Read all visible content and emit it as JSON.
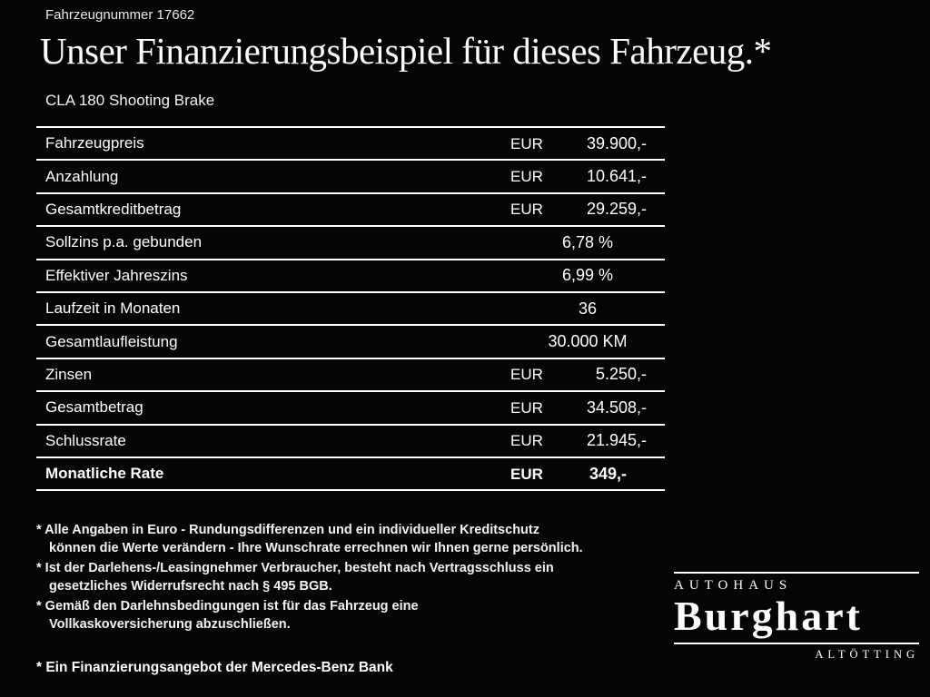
{
  "page": {
    "vehicle_number": "Fahrzeugnummer 17662",
    "title": "Unser Finanzierungsbeispiel für dieses Fahrzeug.*",
    "subtitle": "CLA 180 Shooting Brake"
  },
  "table": {
    "rows": [
      {
        "label": "Fahrzeugpreis",
        "currency": "EUR",
        "value": "39.900,-"
      },
      {
        "label": "Anzahlung",
        "currency": "EUR",
        "value": "10.641,-"
      },
      {
        "label": "Gesamtkreditbetrag",
        "currency": "EUR",
        "value": "29.259,-"
      },
      {
        "label": "Sollzins p.a. gebunden",
        "currency": "",
        "value": "6,78 %"
      },
      {
        "label": "Effektiver Jahreszins",
        "currency": "",
        "value": "6,99 %"
      },
      {
        "label": "Laufzeit in Monaten",
        "currency": "",
        "value": "36"
      },
      {
        "label": "Gesamtlaufleistung",
        "currency": "",
        "value": "30.000 KM"
      },
      {
        "label": "Zinsen",
        "currency": "EUR",
        "value": "5.250,-"
      },
      {
        "label": "Gesamtbetrag",
        "currency": "EUR",
        "value": "34.508,-"
      },
      {
        "label": "Schlussrate",
        "currency": "EUR",
        "value": "21.945,-"
      },
      {
        "label": "Monatliche Rate",
        "currency": "EUR",
        "value": "349,-",
        "bold": true
      }
    ]
  },
  "footnotes": [
    {
      "lines": [
        "* Alle Angaben in Euro - Rundungsdifferenzen und ein individueller Kreditschutz",
        "können die Werte verändern - Ihre Wunschrate errechnen wir Ihnen gerne persönlich."
      ]
    },
    {
      "lines": [
        "* Ist der Darlehens-/Leasingnehmer Verbraucher, besteht nach Vertragsschluss ein",
        "gesetzliches Widerrufsrecht nach § 495 BGB."
      ]
    },
    {
      "lines": [
        "* Gemäß den Darlehnsbedingungen ist für das Fahrzeug eine",
        "Vollkaskoversicherung abzuschließen."
      ]
    }
  ],
  "bank_note": "* Ein Finanzierungsangebot der Mercedes-Benz Bank",
  "dealer_logo": {
    "top_label": "AUTOHAUS",
    "name": "Burghart",
    "bottom_label": "ALTÖTTING"
  },
  "colors": {
    "background": "#050505",
    "text": "#ffffff",
    "line": "#ffffff"
  }
}
